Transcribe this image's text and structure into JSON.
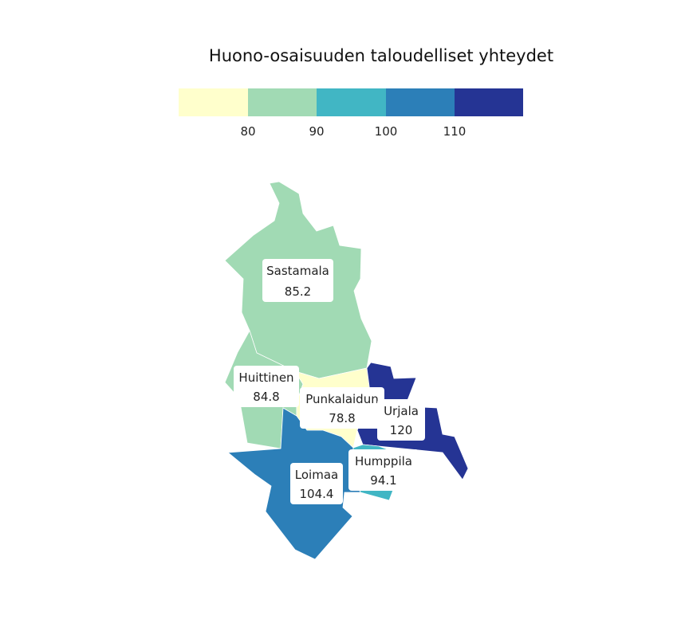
{
  "map": {
    "title": "Huono-osaisuuden taloudelliset yhteydet",
    "legend": {
      "colors": [
        "#ffffcc",
        "#a1dab4",
        "#41b6c4",
        "#2c7fb8",
        "#253494"
      ],
      "ticks": [
        "80",
        "90",
        "100",
        "110"
      ]
    },
    "regions": [
      {
        "id": "sastamala",
        "name": "Sastamala",
        "value": "85.2",
        "color": "#a1dab4"
      },
      {
        "id": "huittinen",
        "name": "Huittinen",
        "value": "84.8",
        "color": "#a1dab4"
      },
      {
        "id": "punkalaidun",
        "name": "Punkalaidun",
        "value": "78.8",
        "color": "#ffffcc"
      },
      {
        "id": "urjala",
        "name": "Urjala",
        "value": "120",
        "color": "#253494"
      },
      {
        "id": "humppila",
        "name": "Humppila",
        "value": "94.1",
        "color": "#41b6c4"
      },
      {
        "id": "loimaa",
        "name": "Loimaa",
        "value": "104.4",
        "color": "#2c7fb8"
      }
    ]
  }
}
